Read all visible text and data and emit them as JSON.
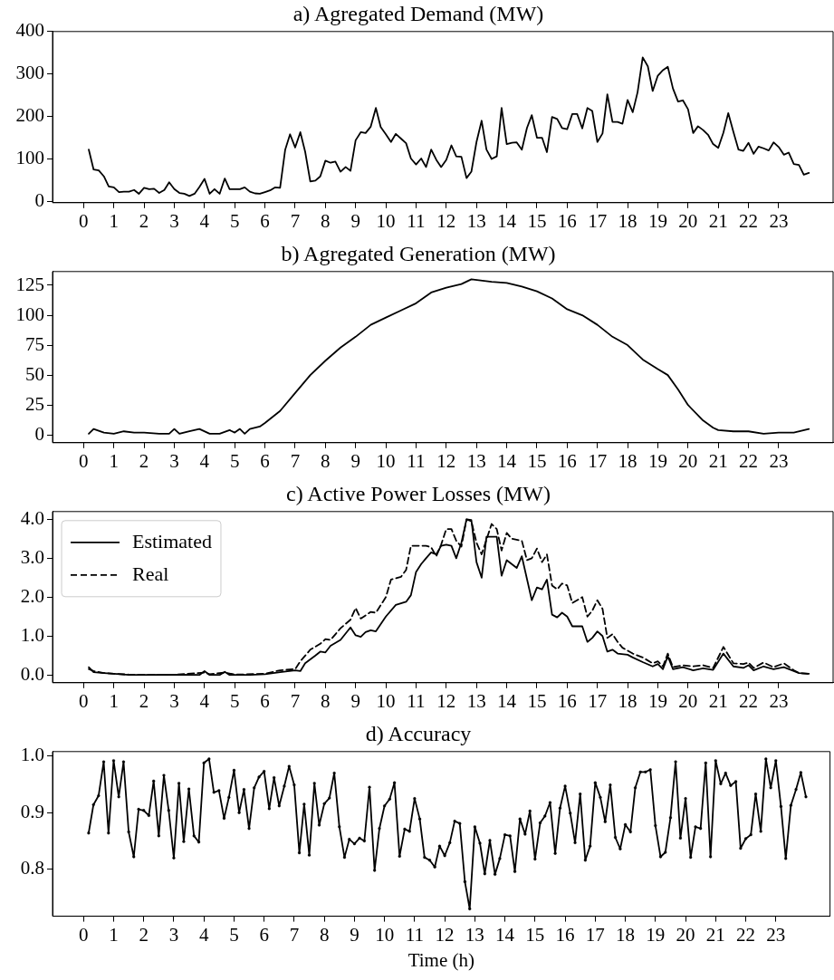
{
  "chart_data": [
    {
      "type": "line",
      "title": "a) Agregated Demand (MW)",
      "color": "#000000",
      "marker": "none",
      "line_style": "solid",
      "x": [
        0.17,
        0.33,
        0.5,
        0.67,
        0.83,
        1,
        1.17,
        1.33,
        1.5,
        1.67,
        1.83,
        2,
        2.17,
        2.33,
        2.5,
        2.67,
        2.83,
        3,
        3.17,
        3.33,
        3.5,
        3.67,
        3.83,
        4,
        4.17,
        4.33,
        4.5,
        4.67,
        4.83,
        5,
        5.17,
        5.33,
        5.5,
        5.67,
        5.83,
        6,
        6.17,
        6.33,
        6.5,
        6.67,
        6.83,
        7,
        7.17,
        7.33,
        7.5,
        7.67,
        7.83,
        8,
        8.17,
        8.33,
        8.5,
        8.67,
        8.83,
        9,
        9.17,
        9.33,
        9.5,
        9.67,
        9.83,
        10,
        10.17,
        10.33,
        10.5,
        10.67,
        10.83,
        11,
        11.17,
        11.33,
        11.5,
        11.67,
        11.83,
        12,
        12.17,
        12.33,
        12.5,
        12.67,
        12.83,
        13,
        13.17,
        13.33,
        13.5,
        13.67,
        13.83,
        14,
        14.17,
        14.33,
        14.5,
        14.67,
        14.83,
        15,
        15.17,
        15.33,
        15.5,
        15.67,
        15.83,
        16,
        16.17,
        16.33,
        16.5,
        16.67,
        16.83,
        17,
        17.17,
        17.33,
        17.5,
        17.67,
        17.83,
        18,
        18.17,
        18.33,
        18.5,
        18.67,
        18.83,
        19,
        19.17,
        19.33,
        19.5,
        19.67,
        19.83,
        20,
        20.17,
        20.33,
        20.5,
        20.67,
        20.83,
        21,
        21.17,
        21.33,
        21.5,
        21.67,
        21.83,
        22,
        22.17,
        22.33,
        22.5,
        22.67,
        22.83,
        23,
        23.17,
        23.33,
        23.5,
        23.67,
        23.83,
        24
      ],
      "values": [
        122,
        75,
        73,
        59,
        35,
        33,
        22,
        23,
        23,
        27,
        18,
        32,
        29,
        30,
        20,
        27,
        45,
        29,
        20,
        18,
        13,
        18,
        34,
        53,
        18,
        29,
        18,
        54,
        29,
        29,
        29,
        33,
        23,
        19,
        18,
        22,
        26,
        33,
        32,
        122,
        158,
        127,
        163,
        117,
        47,
        49,
        59,
        96,
        91,
        94,
        70,
        81,
        72,
        144,
        163,
        161,
        176,
        220,
        175,
        158,
        140,
        159,
        148,
        137,
        101,
        87,
        101,
        81,
        122,
        98,
        81,
        98,
        132,
        106,
        105,
        55,
        70,
        140,
        190,
        122,
        100,
        106,
        220,
        135,
        138,
        139,
        122,
        173,
        203,
        150,
        150,
        116,
        199,
        194,
        173,
        170,
        206,
        206,
        172,
        220,
        213,
        140,
        160,
        252,
        187,
        187,
        183,
        239,
        210,
        257,
        339,
        318,
        260,
        296,
        309,
        317,
        266,
        235,
        238,
        217,
        161,
        177,
        168,
        156,
        135,
        126,
        162,
        208,
        164,
        122,
        119,
        138,
        112,
        129,
        125,
        120,
        139,
        128,
        110,
        115,
        88,
        86,
        63,
        67
      ],
      "xlim": [
        -1.03,
        24.8
      ],
      "xticks": [
        0,
        1,
        2,
        3,
        4,
        5,
        6,
        7,
        8,
        9,
        10,
        11,
        12,
        13,
        14,
        15,
        16,
        17,
        18,
        19,
        20,
        21,
        22,
        23
      ],
      "ylim": [
        -3,
        400
      ],
      "yticks": [
        0,
        100,
        200,
        300,
        400
      ]
    },
    {
      "type": "line",
      "title": "b) Agregated Generation (MW)",
      "color": "#000000",
      "marker": "none",
      "line_style": "solid",
      "x": [
        0.17,
        0.33,
        0.67,
        1,
        1.33,
        1.67,
        2,
        2.5,
        2.83,
        3,
        3.17,
        3.5,
        3.83,
        4.17,
        4.5,
        4.83,
        5,
        5.17,
        5.33,
        5.5,
        5.83,
        6,
        6.5,
        7,
        7.5,
        8,
        8.5,
        9,
        9.5,
        10,
        10.5,
        11,
        11.5,
        12,
        12.5,
        12.83,
        13.5,
        14,
        14.5,
        15,
        15.5,
        16,
        16.5,
        17,
        17.5,
        18,
        18.5,
        19,
        19.33,
        19.67,
        20,
        20.5,
        20.83,
        21,
        21.5,
        22,
        22.5,
        23,
        23.5,
        24
      ],
      "values": [
        1,
        5,
        2,
        1,
        3,
        2,
        2,
        1,
        1,
        5,
        1,
        3,
        5,
        1,
        1,
        4,
        2,
        5,
        1,
        5,
        7,
        10,
        20,
        35,
        50,
        62,
        73,
        82,
        92,
        98,
        104,
        110,
        119,
        123,
        126,
        130,
        128,
        127,
        124,
        120,
        114,
        105,
        100,
        92,
        82,
        75,
        63,
        55,
        50,
        38,
        25,
        12,
        6,
        4,
        3,
        3,
        1,
        2,
        2,
        5
      ],
      "xlim": [
        -1.03,
        24.8
      ],
      "xticks": [
        0,
        1,
        2,
        3,
        4,
        5,
        6,
        7,
        8,
        9,
        10,
        11,
        12,
        13,
        14,
        15,
        16,
        17,
        18,
        19,
        20,
        21,
        22,
        23
      ],
      "ylim": [
        -6.5,
        136.5
      ],
      "yticks": [
        0,
        25,
        50,
        75,
        100,
        125
      ]
    },
    {
      "type": "line",
      "title": "c) Active Power Losses (MW)",
      "marker": "none",
      "legend": "top left",
      "series": [
        {
          "name": "Estimated",
          "color": "#000000",
          "line_style": "solid",
          "x": [
            0.17,
            0.33,
            0.67,
            1,
            1.5,
            2,
            3,
            3.83,
            4,
            4.17,
            4.5,
            4.67,
            4.83,
            5.5,
            6,
            6.5,
            7,
            7.17,
            7.33,
            7.67,
            7.83,
            8,
            8.17,
            8.5,
            8.83,
            9,
            9.17,
            9.33,
            9.5,
            9.67,
            10,
            10.33,
            10.67,
            10.83,
            11,
            11.17,
            11.33,
            11.5,
            11.67,
            11.83,
            12,
            12.17,
            12.33,
            12.5,
            12.67,
            12.83,
            13,
            13.17,
            13.33,
            13.5,
            13.67,
            13.83,
            14,
            14.33,
            14.5,
            14.83,
            15,
            15.17,
            15.33,
            15.5,
            15.67,
            15.83,
            16,
            16.17,
            16.5,
            16.67,
            16.83,
            17,
            17.17,
            17.33,
            17.5,
            17.67,
            18,
            18.17,
            18.5,
            18.83,
            19,
            19.17,
            19.33,
            19.5,
            19.83,
            20.17,
            20.5,
            20.83,
            21.17,
            21.5,
            21.83,
            22,
            22.17,
            22.5,
            22.83,
            23.17,
            23.5,
            23.67,
            24
          ],
          "values": [
            0.2,
            0.07,
            0.05,
            0.03,
            0,
            0,
            0.01,
            0,
            0.1,
            0,
            0,
            0.08,
            0,
            0,
            0.02,
            0.07,
            0.12,
            0.1,
            0.3,
            0.5,
            0.6,
            0.58,
            0.75,
            0.9,
            1.22,
            1.02,
            0.98,
            1.1,
            1.15,
            1.12,
            1.5,
            1.8,
            1.88,
            2.05,
            2.65,
            2.85,
            3,
            3.15,
            3.1,
            3.32,
            3.35,
            3.32,
            3,
            3.4,
            4,
            3.98,
            2.9,
            2.5,
            3.55,
            3.55,
            3.55,
            2.55,
            2.95,
            2.75,
            3.05,
            1.92,
            2.25,
            2.2,
            2.45,
            1.55,
            1.48,
            1.6,
            1.5,
            1.25,
            1.25,
            0.85,
            0.95,
            1.12,
            1,
            0.6,
            0.65,
            0.55,
            0.52,
            0.45,
            0.33,
            0.22,
            0.28,
            0.15,
            0.48,
            0.15,
            0.2,
            0.12,
            0.17,
            0.13,
            0.55,
            0.22,
            0.18,
            0.25,
            0.12,
            0.22,
            0.15,
            0.2,
            0.1,
            0.05,
            0.03
          ]
        },
        {
          "name": "Real",
          "color": "#000000",
          "line_style": "dashed",
          "x": [
            0.17,
            0.33,
            0.67,
            1,
            1.5,
            3,
            4,
            4.17,
            4.67,
            5,
            6,
            6.5,
            7,
            7.17,
            7.5,
            7.83,
            8,
            8.17,
            8.5,
            8.83,
            9,
            9.17,
            9.5,
            9.67,
            10,
            10.17,
            10.5,
            10.67,
            10.83,
            11.33,
            11.5,
            11.67,
            11.83,
            12,
            12.17,
            12.33,
            12.5,
            12.67,
            12.83,
            13,
            13.17,
            13.5,
            13.67,
            13.83,
            14,
            14.17,
            14.5,
            14.67,
            14.83,
            15,
            15.17,
            15.33,
            15.5,
            15.67,
            15.83,
            16,
            16.17,
            16.5,
            16.67,
            16.83,
            17,
            17.17,
            17.33,
            17.5,
            17.67,
            17.83,
            18.17,
            18.5,
            18.83,
            19,
            19.17,
            19.33,
            19.5,
            19.83,
            20.17,
            20.5,
            20.83,
            21.17,
            21.5,
            21.83,
            22,
            22.17,
            22.5,
            22.83,
            23.17,
            23.5,
            23.67,
            24
          ],
          "values": [
            0.15,
            0.1,
            0.05,
            0.03,
            0.01,
            0.01,
            0.06,
            0.02,
            0.06,
            0.01,
            0.03,
            0.12,
            0.15,
            0.35,
            0.65,
            0.8,
            0.92,
            0.9,
            1.2,
            1.42,
            1.72,
            1.45,
            1.62,
            1.6,
            2,
            2.45,
            2.52,
            2.7,
            3.32,
            3.32,
            3.28,
            3.05,
            3.35,
            3.75,
            3.75,
            3.45,
            3.3,
            4,
            3.95,
            3.4,
            3.1,
            3.88,
            3.75,
            3.2,
            3.65,
            3.5,
            3.45,
            2.95,
            3,
            3.25,
            2.9,
            3.1,
            2.3,
            2.2,
            2.35,
            2.3,
            1.85,
            2,
            1.5,
            1.65,
            1.92,
            1.7,
            0.95,
            1.05,
            0.85,
            0.7,
            0.55,
            0.45,
            0.3,
            0.35,
            0.22,
            0.55,
            0.2,
            0.25,
            0.22,
            0.25,
            0.18,
            0.72,
            0.3,
            0.28,
            0.32,
            0.18,
            0.32,
            0.2,
            0.3,
            0.12,
            0.05,
            0.03
          ]
        }
      ],
      "xlim": [
        -1.03,
        24.8
      ],
      "xticks": [
        0,
        1,
        2,
        3,
        4,
        5,
        6,
        7,
        8,
        9,
        10,
        11,
        12,
        13,
        14,
        15,
        16,
        17,
        18,
        19,
        20,
        21,
        22,
        23
      ],
      "ylim": [
        -0.2,
        4.2
      ],
      "yticks": [
        {
          "value": 0,
          "label": "0.0"
        },
        {
          "value": 1,
          "label": "1.0"
        },
        {
          "value": 2,
          "label": "2.0"
        },
        {
          "value": 3,
          "label": "3.0"
        },
        {
          "value": 4,
          "label": "4.0"
        }
      ]
    },
    {
      "type": "line",
      "title": "d) Accuracy",
      "xlabel": "Time (h)",
      "color": "#000000",
      "marker": "circle",
      "line_style": "solid",
      "x": [
        0.17,
        0.33,
        0.5,
        0.67,
        0.83,
        1,
        1.17,
        1.33,
        1.5,
        1.67,
        1.83,
        2,
        2.17,
        2.33,
        2.5,
        2.67,
        2.83,
        3,
        3.17,
        3.33,
        3.5,
        3.67,
        3.83,
        4,
        4.17,
        4.33,
        4.5,
        4.67,
        4.83,
        5,
        5.17,
        5.33,
        5.5,
        5.67,
        5.83,
        6,
        6.17,
        6.33,
        6.5,
        6.67,
        6.83,
        7,
        7.17,
        7.33,
        7.5,
        7.67,
        7.83,
        8,
        8.17,
        8.33,
        8.5,
        8.67,
        8.83,
        9,
        9.17,
        9.33,
        9.5,
        9.67,
        9.83,
        10,
        10.17,
        10.33,
        10.5,
        10.67,
        10.83,
        11,
        11.17,
        11.33,
        11.5,
        11.67,
        11.83,
        12,
        12.17,
        12.33,
        12.5,
        12.67,
        12.83,
        13,
        13.17,
        13.33,
        13.5,
        13.67,
        13.83,
        14,
        14.17,
        14.33,
        14.5,
        14.67,
        14.83,
        15,
        15.17,
        15.33,
        15.5,
        15.67,
        15.83,
        16,
        16.17,
        16.33,
        16.5,
        16.67,
        16.83,
        17,
        17.17,
        17.33,
        17.5,
        17.67,
        17.83,
        18,
        18.17,
        18.33,
        18.5,
        18.67,
        18.83,
        19,
        19.17,
        19.33,
        19.5,
        19.67,
        19.83,
        20,
        20.17,
        20.33,
        20.5,
        20.67,
        20.83,
        21,
        21.17,
        21.33,
        21.5,
        21.67,
        21.83,
        22,
        22.17,
        22.33,
        22.5,
        22.67,
        22.83,
        23,
        23.17,
        23.33,
        23.5,
        23.67,
        23.83,
        24
      ],
      "values": [
        0.864,
        0.914,
        0.93,
        0.99,
        0.864,
        0.992,
        0.928,
        0.99,
        0.866,
        0.822,
        0.906,
        0.904,
        0.895,
        0.956,
        0.859,
        0.966,
        0.904,
        0.82,
        0.952,
        0.849,
        0.942,
        0.859,
        0.848,
        0.988,
        0.995,
        0.936,
        0.939,
        0.89,
        0.927,
        0.975,
        0.9,
        0.941,
        0.872,
        0.944,
        0.963,
        0.973,
        0.907,
        0.962,
        0.912,
        0.947,
        0.982,
        0.949,
        0.829,
        0.915,
        0.825,
        0.952,
        0.878,
        0.916,
        0.926,
        0.97,
        0.875,
        0.821,
        0.853,
        0.845,
        0.855,
        0.85,
        0.945,
        0.798,
        0.872,
        0.912,
        0.924,
        0.953,
        0.823,
        0.871,
        0.867,
        0.925,
        0.889,
        0.821,
        0.816,
        0.804,
        0.841,
        0.824,
        0.847,
        0.885,
        0.881,
        0.778,
        0.73,
        0.875,
        0.846,
        0.792,
        0.851,
        0.791,
        0.819,
        0.861,
        0.859,
        0.796,
        0.889,
        0.862,
        0.903,
        0.818,
        0.882,
        0.894,
        0.918,
        0.828,
        0.908,
        0.947,
        0.899,
        0.847,
        0.933,
        0.816,
        0.841,
        0.953,
        0.927,
        0.884,
        0.949,
        0.856,
        0.836,
        0.879,
        0.866,
        0.944,
        0.972,
        0.972,
        0.976,
        0.877,
        0.822,
        0.83,
        0.891,
        0.99,
        0.855,
        0.925,
        0.821,
        0.875,
        0.872,
        0.988,
        0.822,
        0.992,
        0.951,
        0.97,
        0.948,
        0.955,
        0.837,
        0.854,
        0.861,
        0.933,
        0.867,
        0.995,
        0.944,
        0.992,
        0.911,
        0.819,
        0.913,
        0.941,
        0.971,
        0.928
      ],
      "xlim": [
        -1.03,
        24.8
      ],
      "xticks": [
        0,
        1,
        2,
        3,
        4,
        5,
        6,
        7,
        8,
        9,
        10,
        11,
        12,
        13,
        14,
        15,
        16,
        17,
        18,
        19,
        20,
        21,
        22,
        23
      ],
      "ylim": [
        0.717,
        1.008
      ],
      "yticks": [
        {
          "value": 0.8,
          "label": "0.8"
        },
        {
          "value": 0.9,
          "label": "0.9"
        },
        {
          "value": 1,
          "label": "1.0"
        }
      ]
    }
  ]
}
